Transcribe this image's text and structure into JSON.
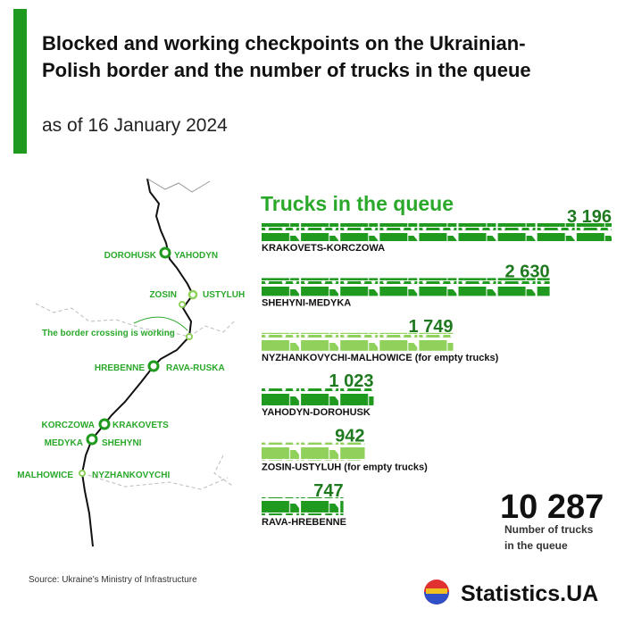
{
  "chart_data": {
    "type": "bar",
    "title": [
      "Blocked and working checkpoints on the Ukrainian-",
      "Polish border and the number of trucks in the queue"
    ],
    "subtitle": "as of 16 January 2024",
    "heading": "Trucks in the queue",
    "categories": [
      "KRAKOVETS-KORCZOWA",
      "SHEHYNI-MEDYKA",
      "NYZHANKOVYCHI-MALHOWICE (for empty trucks)",
      "YAHODYN-DOROHUSK",
      "ZOSIN-USTYLUH (for empty trucks)",
      "RAVA-HREBENNE"
    ],
    "values": [
      3196,
      2630,
      1749,
      1023,
      942,
      747
    ],
    "value_labels": [
      "3 196",
      "2 630",
      "1 749",
      "1 023",
      "942",
      "747"
    ],
    "colors": [
      "#1f9a1f",
      "#1f9a1f",
      "#8fd15a",
      "#1f9a1f",
      "#8fd15a",
      "#1f9a1f"
    ],
    "total": {
      "value": 10287,
      "label": "10 287"
    },
    "total_caption": [
      "Number of trucks",
      "in the queue"
    ],
    "map_labels": [
      "DOROHUSK",
      "YAHODYN",
      "ZOSIN",
      "USTYLUH",
      "The border crossing is working",
      "HREBENNE",
      "RAVA-RUSKA",
      "KORCZOWA",
      "KRAKOVETS",
      "MEDYKA",
      "SHEHYNI",
      "MALHOWICE",
      "NYZHANKOVYCHI"
    ],
    "source": "Source: Ukraine's Ministry of Infrastructure",
    "brand": "Statistics.UA"
  }
}
